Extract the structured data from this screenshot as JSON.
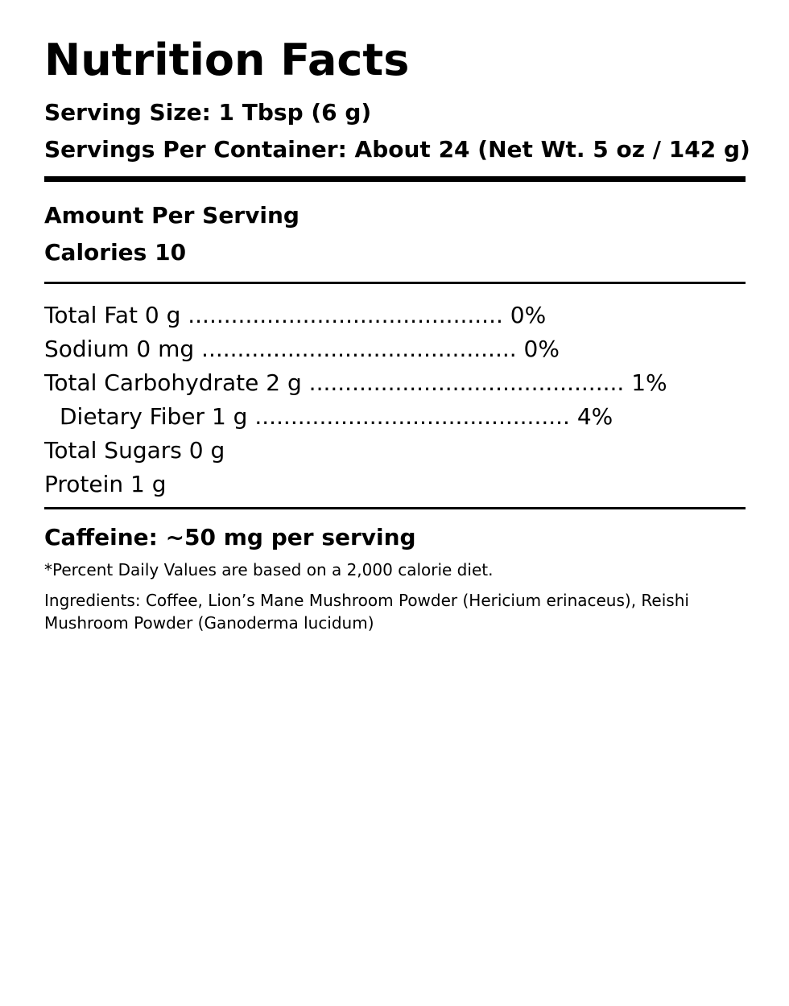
{
  "title": "Nutrition Facts",
  "serving_size": "Serving Size: 1 Tbsp (6 g)",
  "servings_per_container": "Servings Per Container: About 24 (Net Wt. 5 oz / 142 g)",
  "amount_per_serving": "Amount Per Serving",
  "calories": "Calories 10",
  "nutrients": [
    "Total Fat 0 g ............................................ 0%",
    "Sodium 0 mg ............................................ 0%",
    "Total Carbohydrate 2 g ............................................ 1%",
    "Dietary Fiber 1 g ............................................ 4%",
    "Total Sugars 0 g",
    "Protein 1 g"
  ],
  "caffeine": "Caffeine: ~50 mg per serving",
  "footnote": "*Percent Daily Values are based on a 2,000 calorie diet.",
  "ingredients": "Ingredients: Coffee, Lion’s Mane Mushroom Powder (Hericium erinaceus), Reishi Mushroom Powder (Ganoderma lucidum)"
}
